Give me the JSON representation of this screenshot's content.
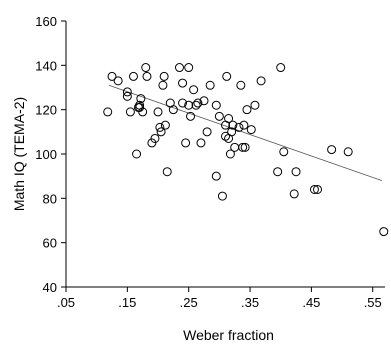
{
  "chart_data": {
    "type": "scatter",
    "title": "",
    "xlabel": "Weber fraction",
    "ylabel": "Math IQ (TEMA-2)",
    "xlim": [
      0.05,
      0.57
    ],
    "ylim": [
      40,
      160
    ],
    "xticks": [
      0.05,
      0.15,
      0.25,
      0.35,
      0.45,
      0.55
    ],
    "xtick_labels": [
      ".05",
      ".15",
      ".25",
      ".35",
      ".45",
      ".55"
    ],
    "yticks": [
      40,
      60,
      80,
      100,
      120,
      140,
      160
    ],
    "ytick_labels": [
      "40",
      "60",
      "80",
      "100",
      "120",
      "140",
      "160"
    ],
    "grid": false,
    "legend": false,
    "marker": "open-circle",
    "colors": {
      "marker_stroke": "#000000",
      "trend_line": "#555555",
      "axis": "#000000"
    },
    "series": [
      {
        "x": [
          0.118,
          0.125,
          0.135,
          0.15,
          0.15,
          0.155,
          0.16,
          0.165,
          0.168,
          0.17,
          0.17,
          0.172,
          0.175,
          0.18,
          0.182,
          0.19,
          0.195,
          0.2,
          0.203,
          0.205,
          0.208,
          0.21,
          0.212,
          0.215,
          0.22,
          0.225,
          0.235,
          0.24,
          0.24,
          0.245,
          0.25,
          0.25,
          0.253,
          0.258,
          0.262,
          0.265,
          0.27,
          0.275,
          0.28,
          0.285,
          0.295,
          0.295,
          0.3,
          0.305,
          0.31,
          0.31,
          0.312,
          0.315,
          0.315,
          0.318,
          0.32,
          0.322,
          0.325,
          0.332,
          0.335,
          0.338,
          0.34,
          0.342,
          0.345,
          0.352,
          0.358,
          0.368,
          0.395,
          0.4,
          0.405,
          0.422,
          0.425,
          0.455,
          0.46,
          0.483,
          0.51,
          0.568
        ],
        "y": [
          119,
          135,
          133,
          128,
          126,
          119,
          135,
          100,
          121,
          122,
          121,
          125,
          119,
          139,
          135,
          105,
          107,
          119,
          112,
          110,
          131,
          135,
          113,
          92,
          123,
          120,
          139,
          132,
          123,
          105,
          139,
          122,
          117,
          129,
          122,
          123,
          105,
          124,
          110,
          131,
          122,
          90,
          117,
          81,
          113,
          108,
          135,
          107,
          116,
          100,
          110,
          113,
          103,
          112,
          131,
          103,
          113,
          103,
          120,
          111,
          122,
          133,
          92,
          139,
          101,
          82,
          92,
          84,
          84,
          102,
          101,
          65
        ]
      }
    ],
    "trend_line": {
      "x": [
        0.12,
        0.565
      ],
      "y": [
        131,
        88
      ]
    }
  }
}
